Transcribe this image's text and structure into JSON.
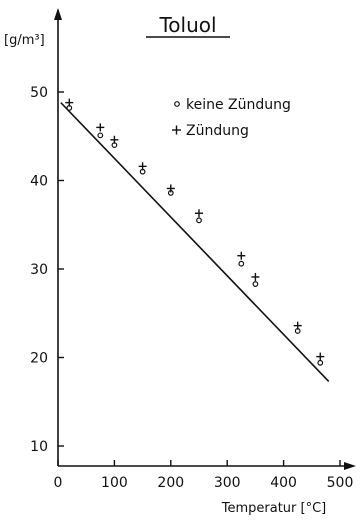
{
  "chart_data": {
    "type": "scatter",
    "title": "Toluol",
    "ylabel": "[g/m³]",
    "xlabel": "Temperatur [°C]",
    "xlim": [
      0,
      500
    ],
    "ylim": [
      10,
      55
    ],
    "x_ticks": [
      0,
      100,
      200,
      300,
      400,
      500
    ],
    "y_ticks": [
      10,
      20,
      30,
      40,
      50
    ],
    "x_tick_labels": [
      "0",
      "100",
      "200",
      "300",
      "400",
      "500"
    ],
    "y_tick_labels": [
      "10",
      "20",
      "30",
      "40",
      "50"
    ],
    "grid": false,
    "legend_position": "top-right",
    "series": [
      {
        "name": "keine Zündung",
        "marker": "circle",
        "x": [
          20,
          75,
          100,
          150,
          200,
          250,
          325,
          350,
          425,
          465
        ],
        "y": [
          48.2,
          45.1,
          44.0,
          41.0,
          38.6,
          35.5,
          30.6,
          28.3,
          23.0,
          19.4
        ]
      },
      {
        "name": "Zündung",
        "marker": "plus",
        "x": [
          20,
          75,
          100,
          150,
          200,
          250,
          325,
          350,
          425,
          465
        ],
        "y": [
          48.8,
          46.0,
          44.6,
          41.6,
          39.1,
          36.3,
          31.5,
          29.1,
          23.6,
          20.1
        ]
      }
    ],
    "fit_line": {
      "x": [
        5,
        480
      ],
      "y": [
        48.8,
        17.3
      ]
    }
  }
}
